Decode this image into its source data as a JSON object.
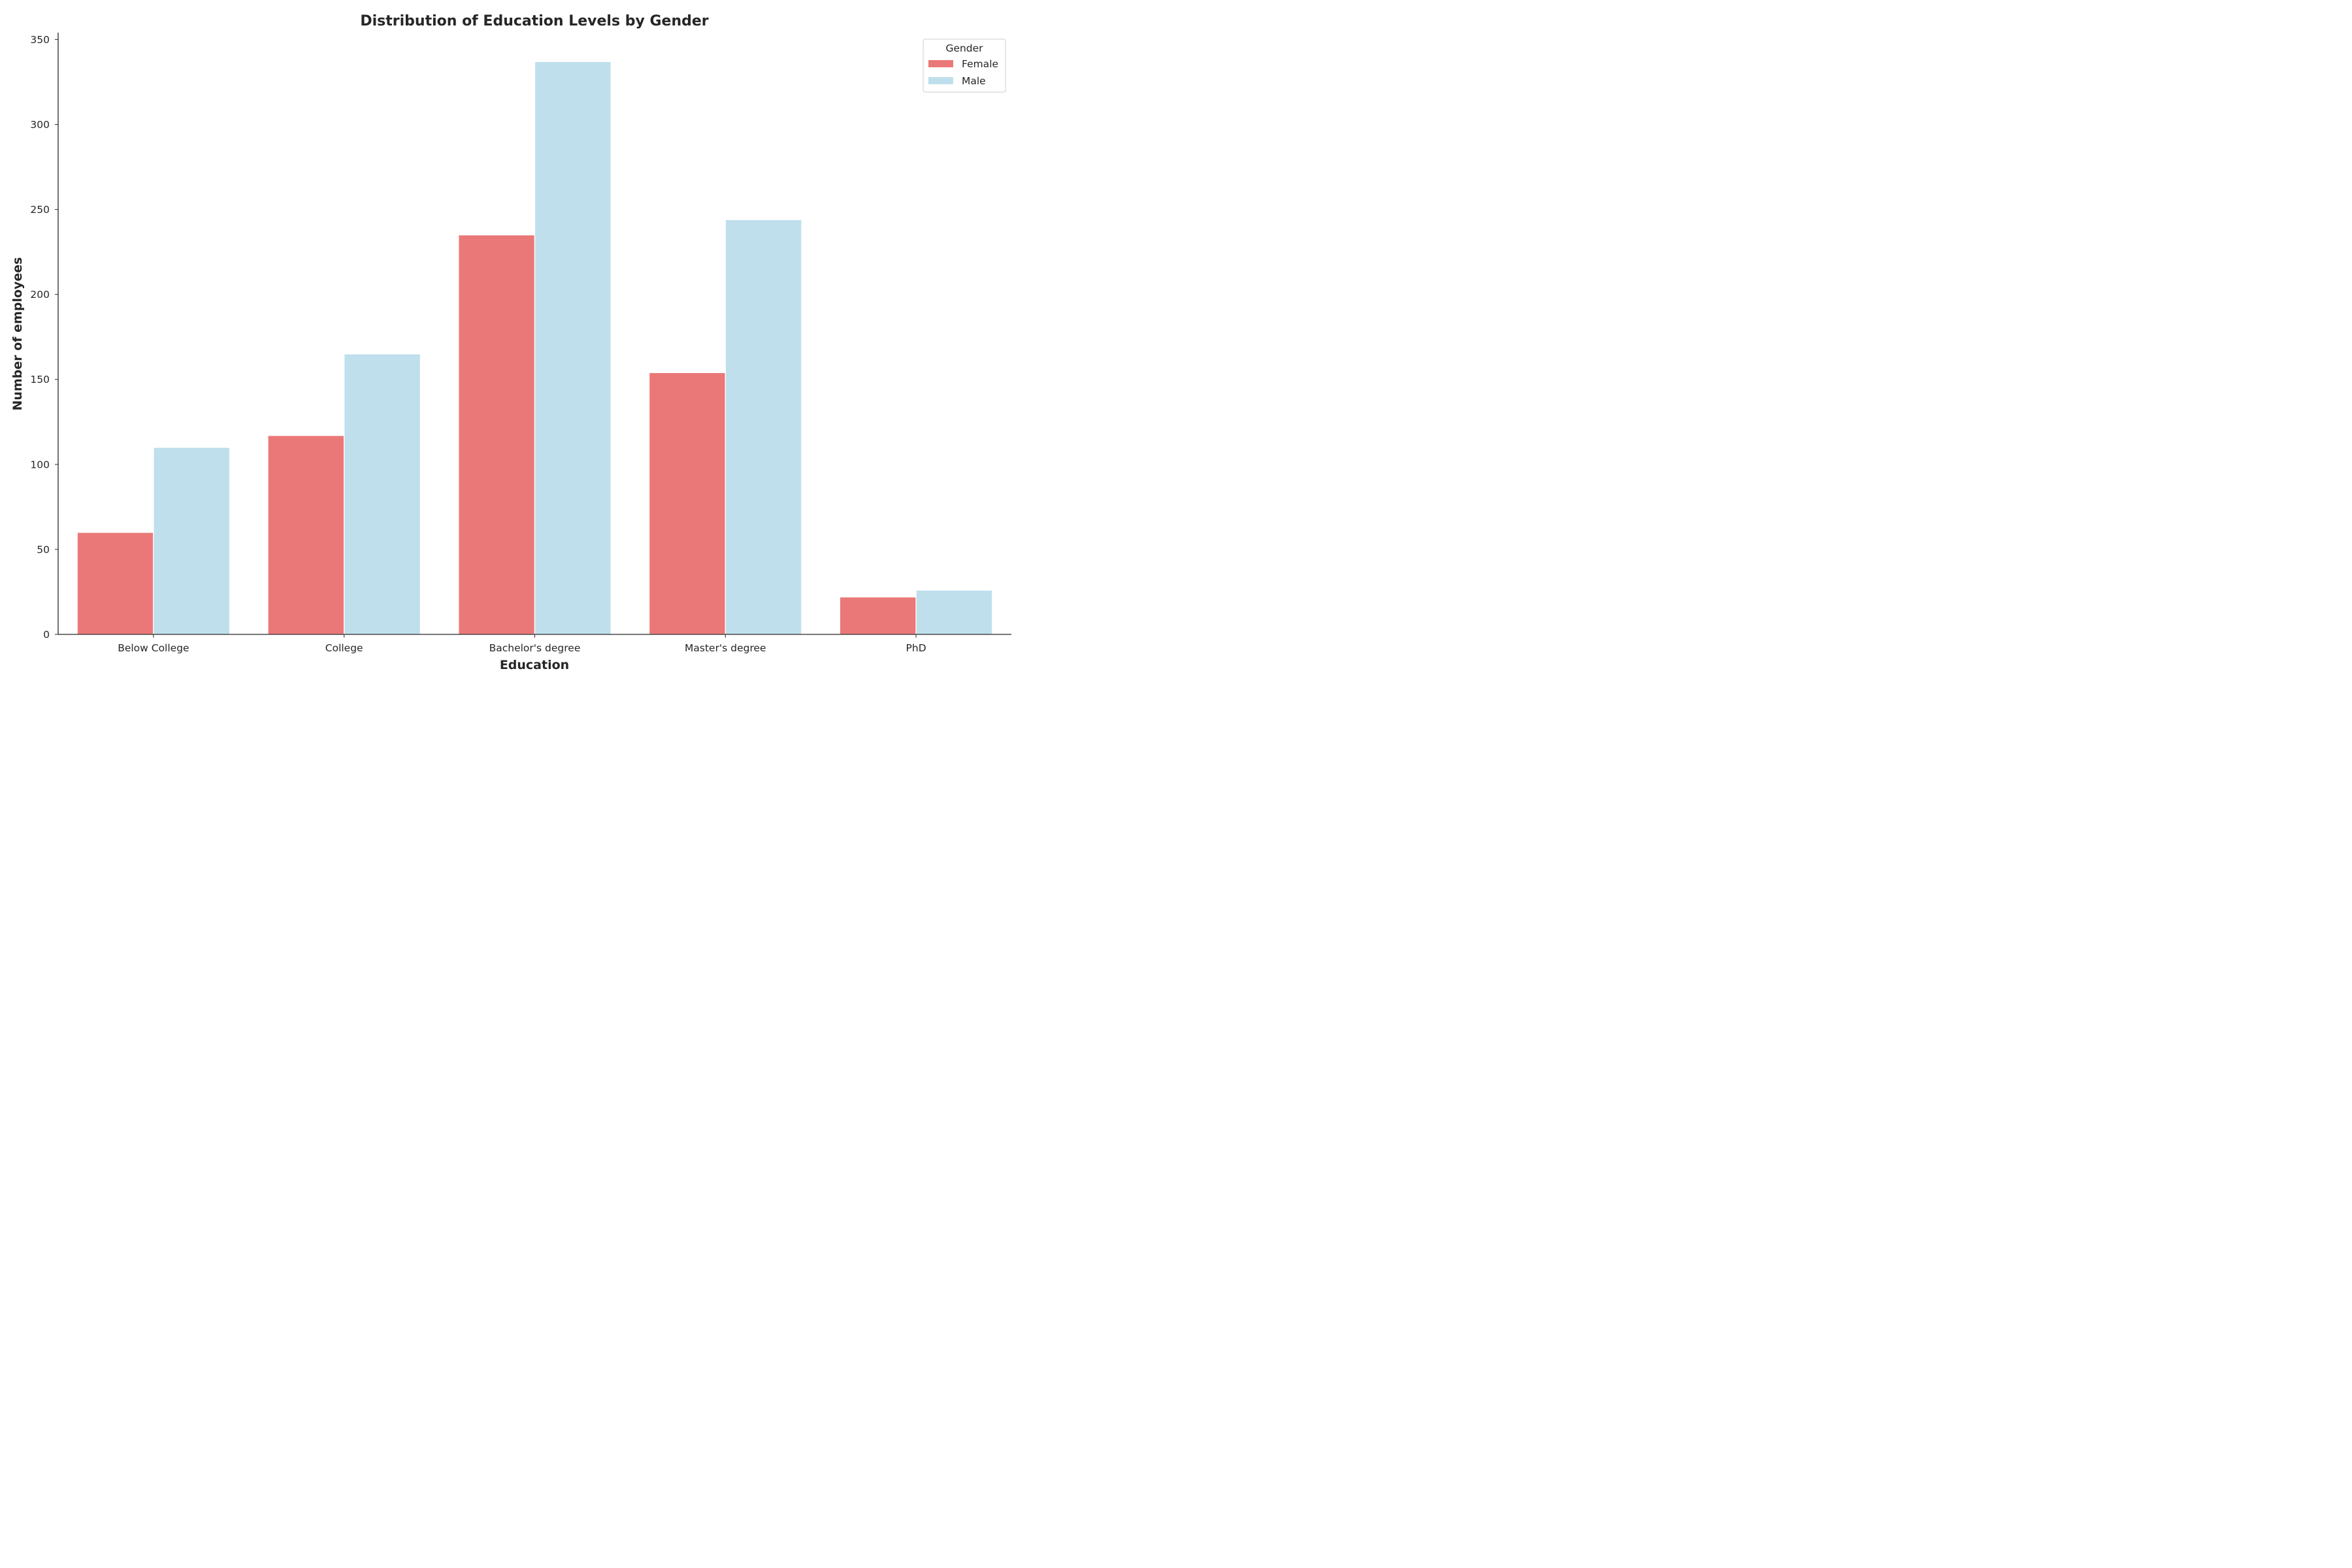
{
  "chart_data": {
    "type": "bar",
    "title": "Distribution of Education Levels by Gender",
    "xlabel": "Education",
    "ylabel": "Number of employees",
    "categories": [
      "Below College",
      "College",
      "Bachelor's degree",
      "Master's degree",
      "PhD"
    ],
    "series": [
      {
        "name": "Female",
        "color": "#eb7878",
        "values": [
          60,
          117,
          235,
          154,
          22
        ]
      },
      {
        "name": "Male",
        "color": "#bfdfec",
        "values": [
          110,
          165,
          337,
          244,
          26
        ]
      }
    ],
    "ylim": [
      0,
      354
    ],
    "yticks": [
      0,
      50,
      100,
      150,
      200,
      250,
      300,
      350
    ],
    "legend": {
      "title": "Gender",
      "placement": "top-right"
    },
    "grid": false
  }
}
